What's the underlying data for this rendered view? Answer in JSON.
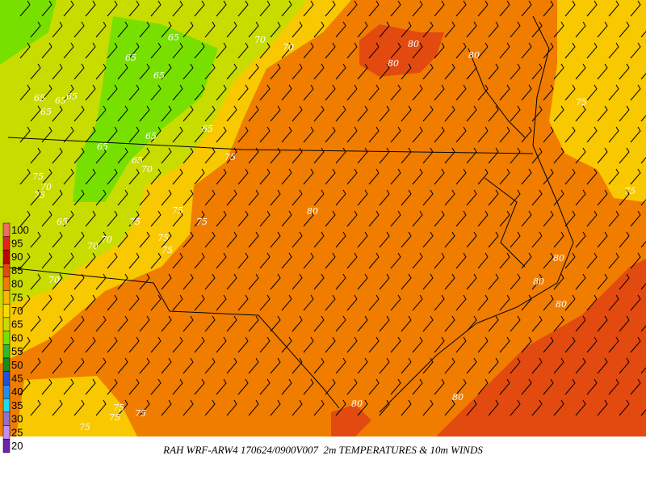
{
  "caption": "RAH WRF-ARW4 170624/0900V007  2m TEMPERATURES & 10m WINDS",
  "legend": {
    "levels": [
      100,
      95,
      90,
      85,
      80,
      75,
      70,
      65,
      60,
      55,
      50,
      45,
      40,
      35,
      30,
      25,
      20
    ],
    "colors": [
      "#f06a6a",
      "#e82020",
      "#c80000",
      "#e24a10",
      "#f07d00",
      "#f8b800",
      "#f8dc00",
      "#c8dc00",
      "#78e000",
      "#30b830",
      "#188c18",
      "#2050e0",
      "#2090f0",
      "#20d8f0",
      "#9070d0",
      "#c090f0",
      "#7020b0"
    ]
  },
  "contour_labels": [
    65,
    70,
    70,
    65,
    65,
    65,
    65,
    65,
    65,
    65,
    65,
    65,
    65,
    70,
    75,
    75,
    70,
    75,
    65,
    75,
    75,
    75,
    70,
    70,
    75,
    75,
    70,
    80,
    80,
    80,
    80,
    75,
    75,
    80,
    80,
    80,
    80,
    80,
    75,
    75,
    75,
    75
  ]
}
